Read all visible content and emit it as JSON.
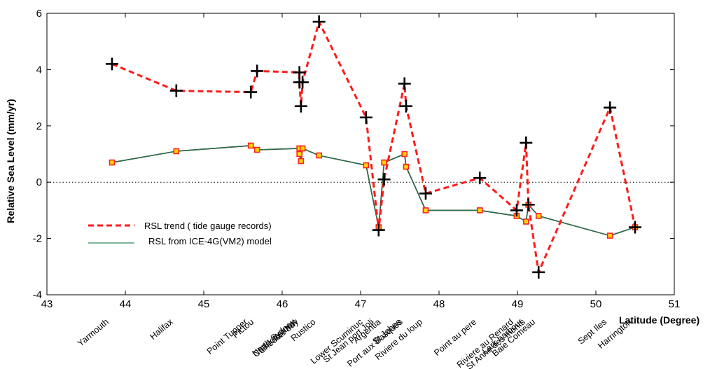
{
  "chart_data": {
    "type": "line",
    "xlabel": "Latitude (Degree)",
    "ylabel": "Relative Sea Level (mm/yr)",
    "xlim": [
      43,
      51
    ],
    "ylim": [
      -4,
      6
    ],
    "xticks": [
      43,
      44,
      45,
      46,
      47,
      48,
      49,
      50,
      51
    ],
    "yticks": [
      -4,
      -2,
      0,
      2,
      4,
      6
    ],
    "zero_line": true,
    "legend_position": "lower-left",
    "series": [
      {
        "name": "RSL trend ( tide gauge records)",
        "color": "#ff1a1a",
        "style": "dashed",
        "marker": "plus",
        "marker_color": "#000000",
        "x": [
          43.83,
          44.65,
          45.6,
          45.68,
          46.22,
          46.22,
          46.24,
          46.26,
          46.47,
          47.07,
          47.23,
          47.3,
          47.56,
          47.58,
          47.83,
          48.52,
          48.99,
          49.11,
          49.14,
          49.27,
          50.18,
          50.5
        ],
        "y": [
          4.2,
          3.25,
          3.2,
          3.95,
          3.9,
          3.55,
          2.7,
          3.55,
          5.7,
          2.3,
          -1.7,
          0.1,
          3.5,
          2.7,
          -0.4,
          0.15,
          -1.0,
          1.4,
          -0.8,
          -3.2,
          2.65,
          -1.6
        ]
      },
      {
        "name": "RSL from ICE-4G(VM2) model",
        "color": "#2e8b57",
        "style": "solid",
        "marker": "square",
        "marker_color": "#ffd700",
        "x": [
          43.83,
          44.65,
          45.6,
          45.68,
          46.22,
          46.22,
          46.24,
          46.26,
          46.47,
          47.07,
          47.23,
          47.3,
          47.56,
          47.58,
          47.83,
          48.52,
          48.99,
          49.11,
          49.14,
          49.27,
          50.18,
          50.5
        ],
        "y": [
          0.7,
          1.1,
          1.3,
          1.15,
          1.2,
          1.0,
          0.75,
          1.2,
          0.95,
          0.6,
          -1.6,
          0.7,
          1.0,
          0.55,
          -1.0,
          -1.0,
          -1.2,
          -1.4,
          -0.8,
          -1.2,
          -1.9,
          -1.6
        ]
      }
    ],
    "stations": [
      {
        "name": "Yarmouth",
        "lat": 43.83
      },
      {
        "name": "Halifax",
        "lat": 44.65
      },
      {
        "name": "Point Tupper",
        "lat": 45.6
      },
      {
        "name": "Pictou",
        "lat": 45.68
      },
      {
        "name": "North Sydney",
        "lat": 46.21
      },
      {
        "name": "Charlottetown",
        "lat": 46.23
      },
      {
        "name": "Shediac bay",
        "lat": 46.25
      },
      {
        "name": "Rustico",
        "lat": 46.47
      },
      {
        "name": "Lower Scuminuc",
        "lat": 47.07
      },
      {
        "name": "St Jean port Joli",
        "lat": 47.21
      },
      {
        "name": "Argentia",
        "lat": 47.3
      },
      {
        "name": "St Johns",
        "lat": 47.56
      },
      {
        "name": "Port aux Basques",
        "lat": 47.58
      },
      {
        "name": "Riviere du loup",
        "lat": 47.83
      },
      {
        "name": "Point au pere",
        "lat": 48.52
      },
      {
        "name": "Riviere au Renard",
        "lat": 48.99
      },
      {
        "name": "Lark harbour",
        "lat": 49.11
      },
      {
        "name": "St Anne des monts",
        "lat": 49.14
      },
      {
        "name": "Baie Comeau",
        "lat": 49.27
      },
      {
        "name": "Sept Iles",
        "lat": 50.18
      },
      {
        "name": "Harrington",
        "lat": 50.5
      }
    ]
  }
}
